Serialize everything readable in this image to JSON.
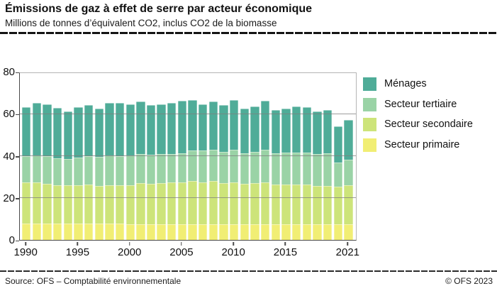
{
  "header": {
    "title": "Émissions de gaz à effet de serre par acteur économique",
    "subtitle": "Millions de tonnes d’équivalent CO2, inclus CO2 de la biomasse"
  },
  "footer": {
    "source": "Source: OFS – Comptabilité environnementale",
    "copyright": "© OFS 2023"
  },
  "chart_data": {
    "type": "bar",
    "stacked": true,
    "title": "Émissions de gaz à effet de serre par acteur économique",
    "unit_note": "Millions de tonnes d’équivalent CO2, inclus CO2 de la biomasse",
    "xlabel": "",
    "ylabel": "",
    "ylim": [
      0,
      80
    ],
    "yticks": [
      0,
      20,
      40,
      60,
      80
    ],
    "grid": true,
    "legend_position": "right",
    "categories": [
      1990,
      1991,
      1992,
      1993,
      1994,
      1995,
      1996,
      1997,
      1998,
      1999,
      2000,
      2001,
      2002,
      2003,
      2004,
      2005,
      2006,
      2007,
      2008,
      2009,
      2010,
      2011,
      2012,
      2013,
      2014,
      2015,
      2016,
      2017,
      2018,
      2019,
      2020,
      2021
    ],
    "xticks": [
      {
        "label": "1990",
        "index": 0
      },
      {
        "label": "1995",
        "index": 5
      },
      {
        "label": "2000",
        "index": 10
      },
      {
        "label": "2005",
        "index": 15
      },
      {
        "label": "2010",
        "index": 20
      },
      {
        "label": "2015",
        "index": 25
      },
      {
        "label": "2021",
        "index": 31
      }
    ],
    "series": [
      {
        "id": "secteur-primaire",
        "name": "Secteur primaire",
        "color": "#F1EE74",
        "values": [
          7.8,
          7.8,
          7.8,
          7.8,
          7.8,
          7.8,
          7.8,
          7.7,
          7.7,
          7.7,
          7.6,
          7.6,
          7.6,
          7.6,
          7.6,
          7.6,
          7.6,
          7.5,
          7.5,
          7.5,
          7.5,
          7.4,
          7.4,
          7.4,
          7.4,
          7.4,
          7.4,
          7.4,
          7.4,
          7.4,
          7.4,
          7.5
        ]
      },
      {
        "id": "secteur-secondaire",
        "name": "Secteur secondaire",
        "color": "#CDE47A",
        "values": [
          19.5,
          19.5,
          18.8,
          18.2,
          18.2,
          18.2,
          18.4,
          17.9,
          18.2,
          18.2,
          18.4,
          19.5,
          19.2,
          19.5,
          19.7,
          19.9,
          20.5,
          20.0,
          20.4,
          19.6,
          19.8,
          19.4,
          19.6,
          19.9,
          19.1,
          19.1,
          18.9,
          18.9,
          18.3,
          18.3,
          18.0,
          18.5
        ]
      },
      {
        "id": "secteur-tertiaire",
        "name": "Secteur tertiaire",
        "color": "#9AD3A6",
        "values": [
          12.4,
          12.9,
          13.3,
          12.9,
          12.6,
          13.3,
          13.7,
          13.9,
          14.3,
          14.1,
          14.1,
          13.7,
          13.6,
          13.6,
          13.7,
          13.8,
          14.4,
          15.0,
          15.1,
          14.9,
          15.7,
          14.5,
          14.8,
          15.7,
          14.6,
          14.9,
          15.3,
          15.1,
          15.2,
          15.4,
          11.5,
          12.3
        ]
      },
      {
        "id": "menages",
        "name": "Ménages",
        "color": "#4FAC98",
        "values": [
          23.3,
          25.1,
          24.6,
          24.0,
          22.6,
          23.7,
          24.4,
          22.9,
          24.8,
          25.0,
          24.4,
          25.2,
          23.8,
          23.9,
          24.2,
          24.9,
          23.9,
          22.0,
          23.0,
          22.3,
          23.5,
          21.3,
          21.5,
          23.2,
          20.6,
          21.1,
          21.9,
          21.7,
          20.2,
          20.6,
          17.1,
          18.7
        ]
      }
    ],
    "legend_order_top_to_bottom": [
      "Ménages",
      "Secteur tertiaire",
      "Secteur secondaire",
      "Secteur primaire"
    ]
  }
}
